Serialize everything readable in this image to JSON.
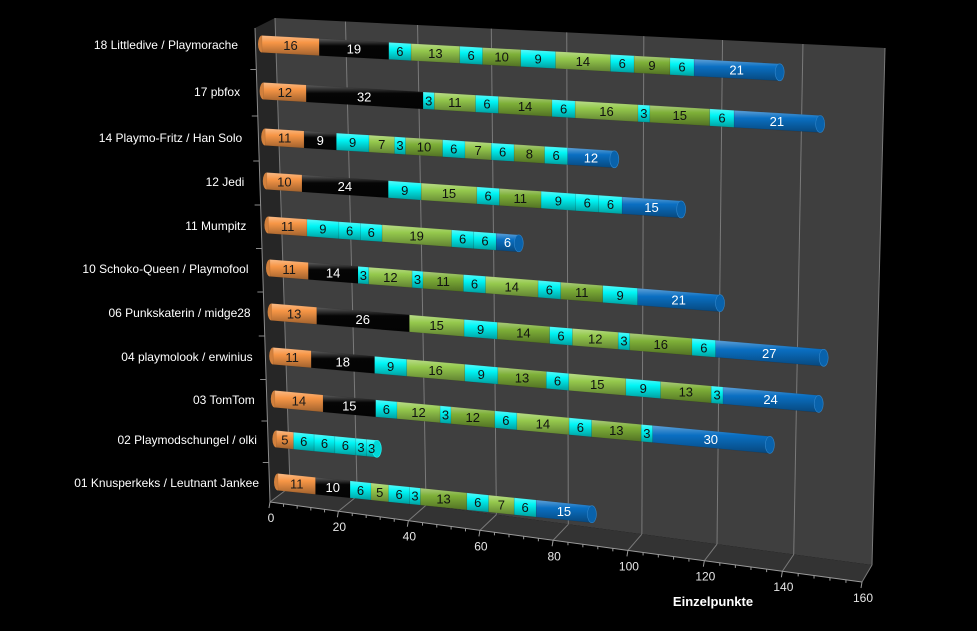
{
  "palette": {
    "orange": "#F79646",
    "black": "#050505",
    "cyan": "#00F5F5",
    "green": "#8CC43E",
    "blue": "#0A6FC2",
    "background": "#000000",
    "wall": "#3F3F3F",
    "gridline": "#7A7A7A"
  },
  "chart_data": {
    "type": "bar",
    "subtype": "3d-stacked-horizontal-cylinder",
    "title": "",
    "xlabel": "Einzelpunkte",
    "ylabel": "",
    "xlim": [
      0,
      160
    ],
    "xticks": [
      "0",
      "20",
      "40",
      "60",
      "80",
      "100",
      "120",
      "140",
      "160"
    ],
    "grid": true,
    "legend": "none",
    "segment_value_labels": true,
    "series_color_keys": [
      "orange",
      "black",
      "cyan",
      "green",
      "blue"
    ],
    "rows": [
      {
        "category": "18 Littledive / Playmorache",
        "segments": [
          [
            16,
            "orange"
          ],
          [
            19,
            "black"
          ],
          [
            6,
            "cyan"
          ],
          [
            13,
            "green"
          ],
          [
            6,
            "cyan"
          ],
          [
            10,
            "green"
          ],
          [
            9,
            "cyan"
          ],
          [
            14,
            "green"
          ],
          [
            6,
            "cyan"
          ],
          [
            9,
            "green"
          ],
          [
            6,
            "cyan"
          ],
          [
            21,
            "blue"
          ]
        ]
      },
      {
        "category": "17 pbfox",
        "segments": [
          [
            12,
            "orange"
          ],
          [
            32,
            "black"
          ],
          [
            3,
            "cyan"
          ],
          [
            11,
            "green"
          ],
          [
            6,
            "cyan"
          ],
          [
            14,
            "green"
          ],
          [
            6,
            "cyan"
          ],
          [
            16,
            "green"
          ],
          [
            3,
            "cyan"
          ],
          [
            15,
            "green"
          ],
          [
            6,
            "cyan"
          ],
          [
            21,
            "blue"
          ]
        ]
      },
      {
        "category": "14 Playmo-Fritz / Han Solo",
        "segments": [
          [
            11,
            "orange"
          ],
          [
            9,
            "black"
          ],
          [
            9,
            "cyan"
          ],
          [
            7,
            "green"
          ],
          [
            3,
            "cyan"
          ],
          [
            10,
            "green"
          ],
          [
            6,
            "cyan"
          ],
          [
            7,
            "green"
          ],
          [
            6,
            "cyan"
          ],
          [
            8,
            "green"
          ],
          [
            6,
            "cyan"
          ],
          [
            12,
            "blue"
          ]
        ]
      },
      {
        "category": "12 Jedi",
        "segments": [
          [
            10,
            "orange"
          ],
          [
            24,
            "black"
          ],
          [
            9,
            "cyan"
          ],
          [
            15,
            "green"
          ],
          [
            6,
            "cyan"
          ],
          [
            11,
            "green"
          ],
          [
            9,
            "cyan"
          ],
          [
            6,
            "cyan"
          ],
          [
            6,
            "cyan"
          ],
          [
            15,
            "blue"
          ]
        ]
      },
      {
        "category": "11 Mumpitz",
        "segments": [
          [
            11,
            "orange"
          ],
          [
            9,
            "cyan"
          ],
          [
            6,
            "cyan"
          ],
          [
            6,
            "cyan"
          ],
          [
            19,
            "green"
          ],
          [
            6,
            "cyan"
          ],
          [
            6,
            "cyan"
          ],
          [
            6,
            "blue"
          ]
        ]
      },
      {
        "category": "10 Schoko-Queen / Playmofool",
        "segments": [
          [
            11,
            "orange"
          ],
          [
            14,
            "black"
          ],
          [
            3,
            "cyan"
          ],
          [
            12,
            "green"
          ],
          [
            3,
            "cyan"
          ],
          [
            11,
            "green"
          ],
          [
            6,
            "cyan"
          ],
          [
            14,
            "green"
          ],
          [
            6,
            "cyan"
          ],
          [
            11,
            "green"
          ],
          [
            9,
            "cyan"
          ],
          [
            21,
            "blue"
          ]
        ]
      },
      {
        "category": "06 Punkskaterin / midge28",
        "segments": [
          [
            13,
            "orange"
          ],
          [
            26,
            "black"
          ],
          [
            15,
            "green"
          ],
          [
            9,
            "cyan"
          ],
          [
            14,
            "green"
          ],
          [
            6,
            "cyan"
          ],
          [
            12,
            "green"
          ],
          [
            3,
            "cyan"
          ],
          [
            16,
            "green"
          ],
          [
            6,
            "cyan"
          ],
          [
            27,
            "blue"
          ]
        ]
      },
      {
        "category": "04 playmolook / erwinius",
        "segments": [
          [
            11,
            "orange"
          ],
          [
            18,
            "black"
          ],
          [
            9,
            "cyan"
          ],
          [
            16,
            "green"
          ],
          [
            9,
            "cyan"
          ],
          [
            13,
            "green"
          ],
          [
            6,
            "cyan"
          ],
          [
            15,
            "green"
          ],
          [
            9,
            "cyan"
          ],
          [
            13,
            "green"
          ],
          [
            3,
            "cyan"
          ],
          [
            24,
            "blue"
          ]
        ]
      },
      {
        "category": "03 TomTom",
        "segments": [
          [
            14,
            "orange"
          ],
          [
            15,
            "black"
          ],
          [
            6,
            "cyan"
          ],
          [
            12,
            "green"
          ],
          [
            3,
            "cyan"
          ],
          [
            12,
            "green"
          ],
          [
            6,
            "cyan"
          ],
          [
            14,
            "green"
          ],
          [
            6,
            "cyan"
          ],
          [
            13,
            "green"
          ],
          [
            3,
            "cyan"
          ],
          [
            30,
            "blue"
          ]
        ]
      },
      {
        "category": "02 Playmodschungel / olki",
        "segments": [
          [
            5,
            "orange"
          ],
          [
            6,
            "cyan"
          ],
          [
            6,
            "cyan"
          ],
          [
            6,
            "cyan"
          ],
          [
            3,
            "cyan"
          ],
          [
            3,
            "cyan"
          ]
        ]
      },
      {
        "category": "01 Knusperkeks / Leutnant Jankee",
        "segments": [
          [
            11,
            "orange"
          ],
          [
            10,
            "black"
          ],
          [
            6,
            "cyan"
          ],
          [
            5,
            "green"
          ],
          [
            6,
            "cyan"
          ],
          [
            3,
            "cyan"
          ],
          [
            13,
            "green"
          ],
          [
            6,
            "cyan"
          ],
          [
            7,
            "green"
          ],
          [
            6,
            "cyan"
          ],
          [
            15,
            "blue"
          ]
        ]
      }
    ]
  }
}
